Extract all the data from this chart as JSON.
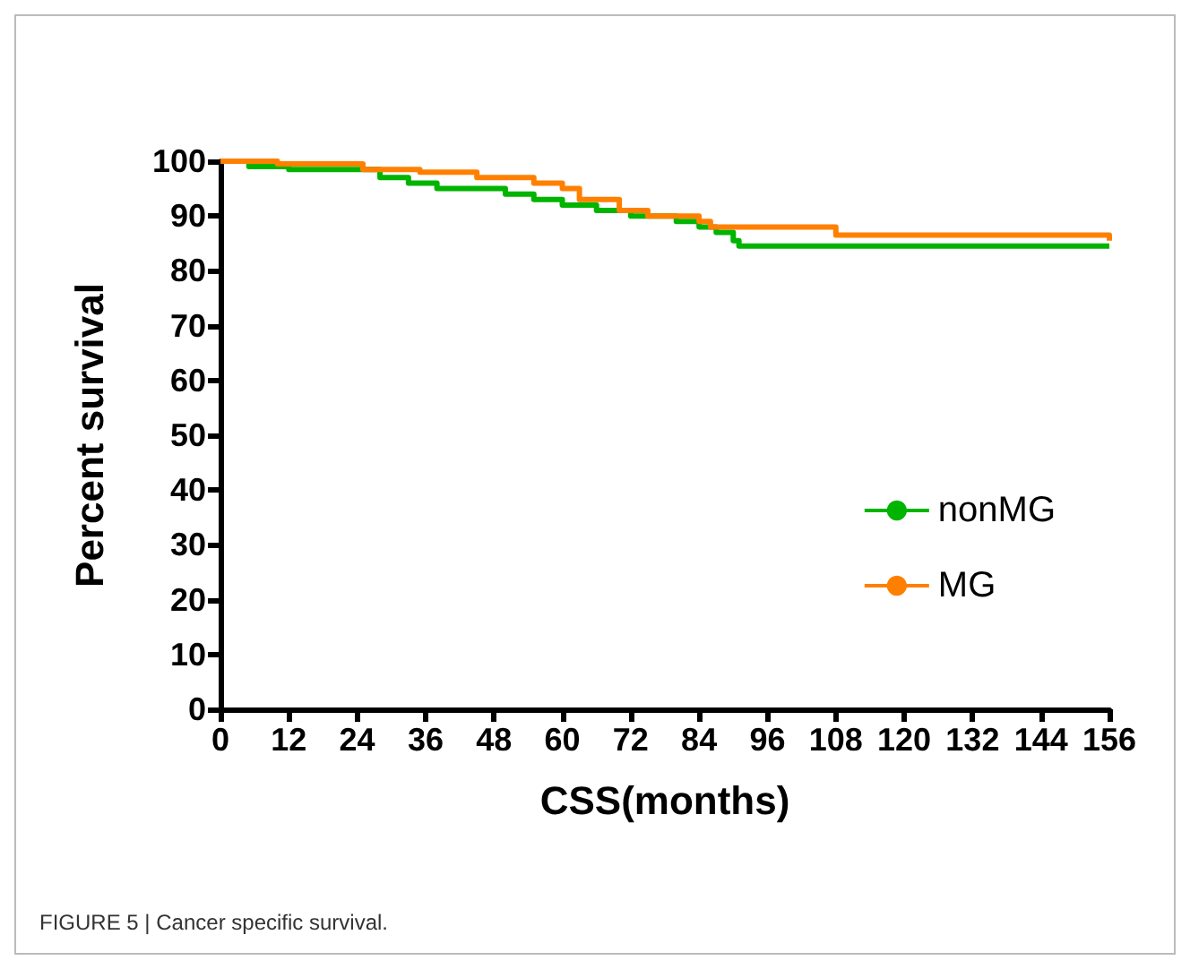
{
  "chart_data": {
    "type": "step",
    "xlabel": "CSS(months)",
    "ylabel": "Percent survival",
    "xlim": [
      0,
      156
    ],
    "xticks": [
      0,
      12,
      24,
      36,
      48,
      60,
      72,
      84,
      96,
      108,
      120,
      132,
      144,
      156
    ],
    "ylim": [
      0,
      100
    ],
    "yticks": [
      0,
      10,
      20,
      30,
      40,
      50,
      60,
      70,
      80,
      90,
      100
    ],
    "grid": false,
    "legend": "right",
    "annotations": [
      "FIGURE 5 | Cancer specific survival."
    ],
    "series": [
      {
        "name": "nonMG",
        "color": "#00b400",
        "x": [
          0,
          5,
          12,
          28,
          33,
          38,
          50,
          55,
          60,
          66,
          72,
          80,
          84,
          87,
          90,
          91,
          156
        ],
        "values": [
          100,
          99,
          98.5,
          97,
          96,
          95,
          94,
          93,
          92,
          91,
          90,
          89,
          88,
          87,
          85.5,
          84.5,
          84.5
        ]
      },
      {
        "name": "MG",
        "color": "#ff8000",
        "x": [
          0,
          10,
          25,
          35,
          45,
          55,
          60,
          63,
          70,
          75,
          84,
          86,
          108,
          156
        ],
        "values": [
          100,
          99.5,
          98.5,
          98,
          97,
          96,
          95,
          93,
          91,
          90,
          89,
          88,
          86.5,
          85.5
        ]
      }
    ]
  }
}
